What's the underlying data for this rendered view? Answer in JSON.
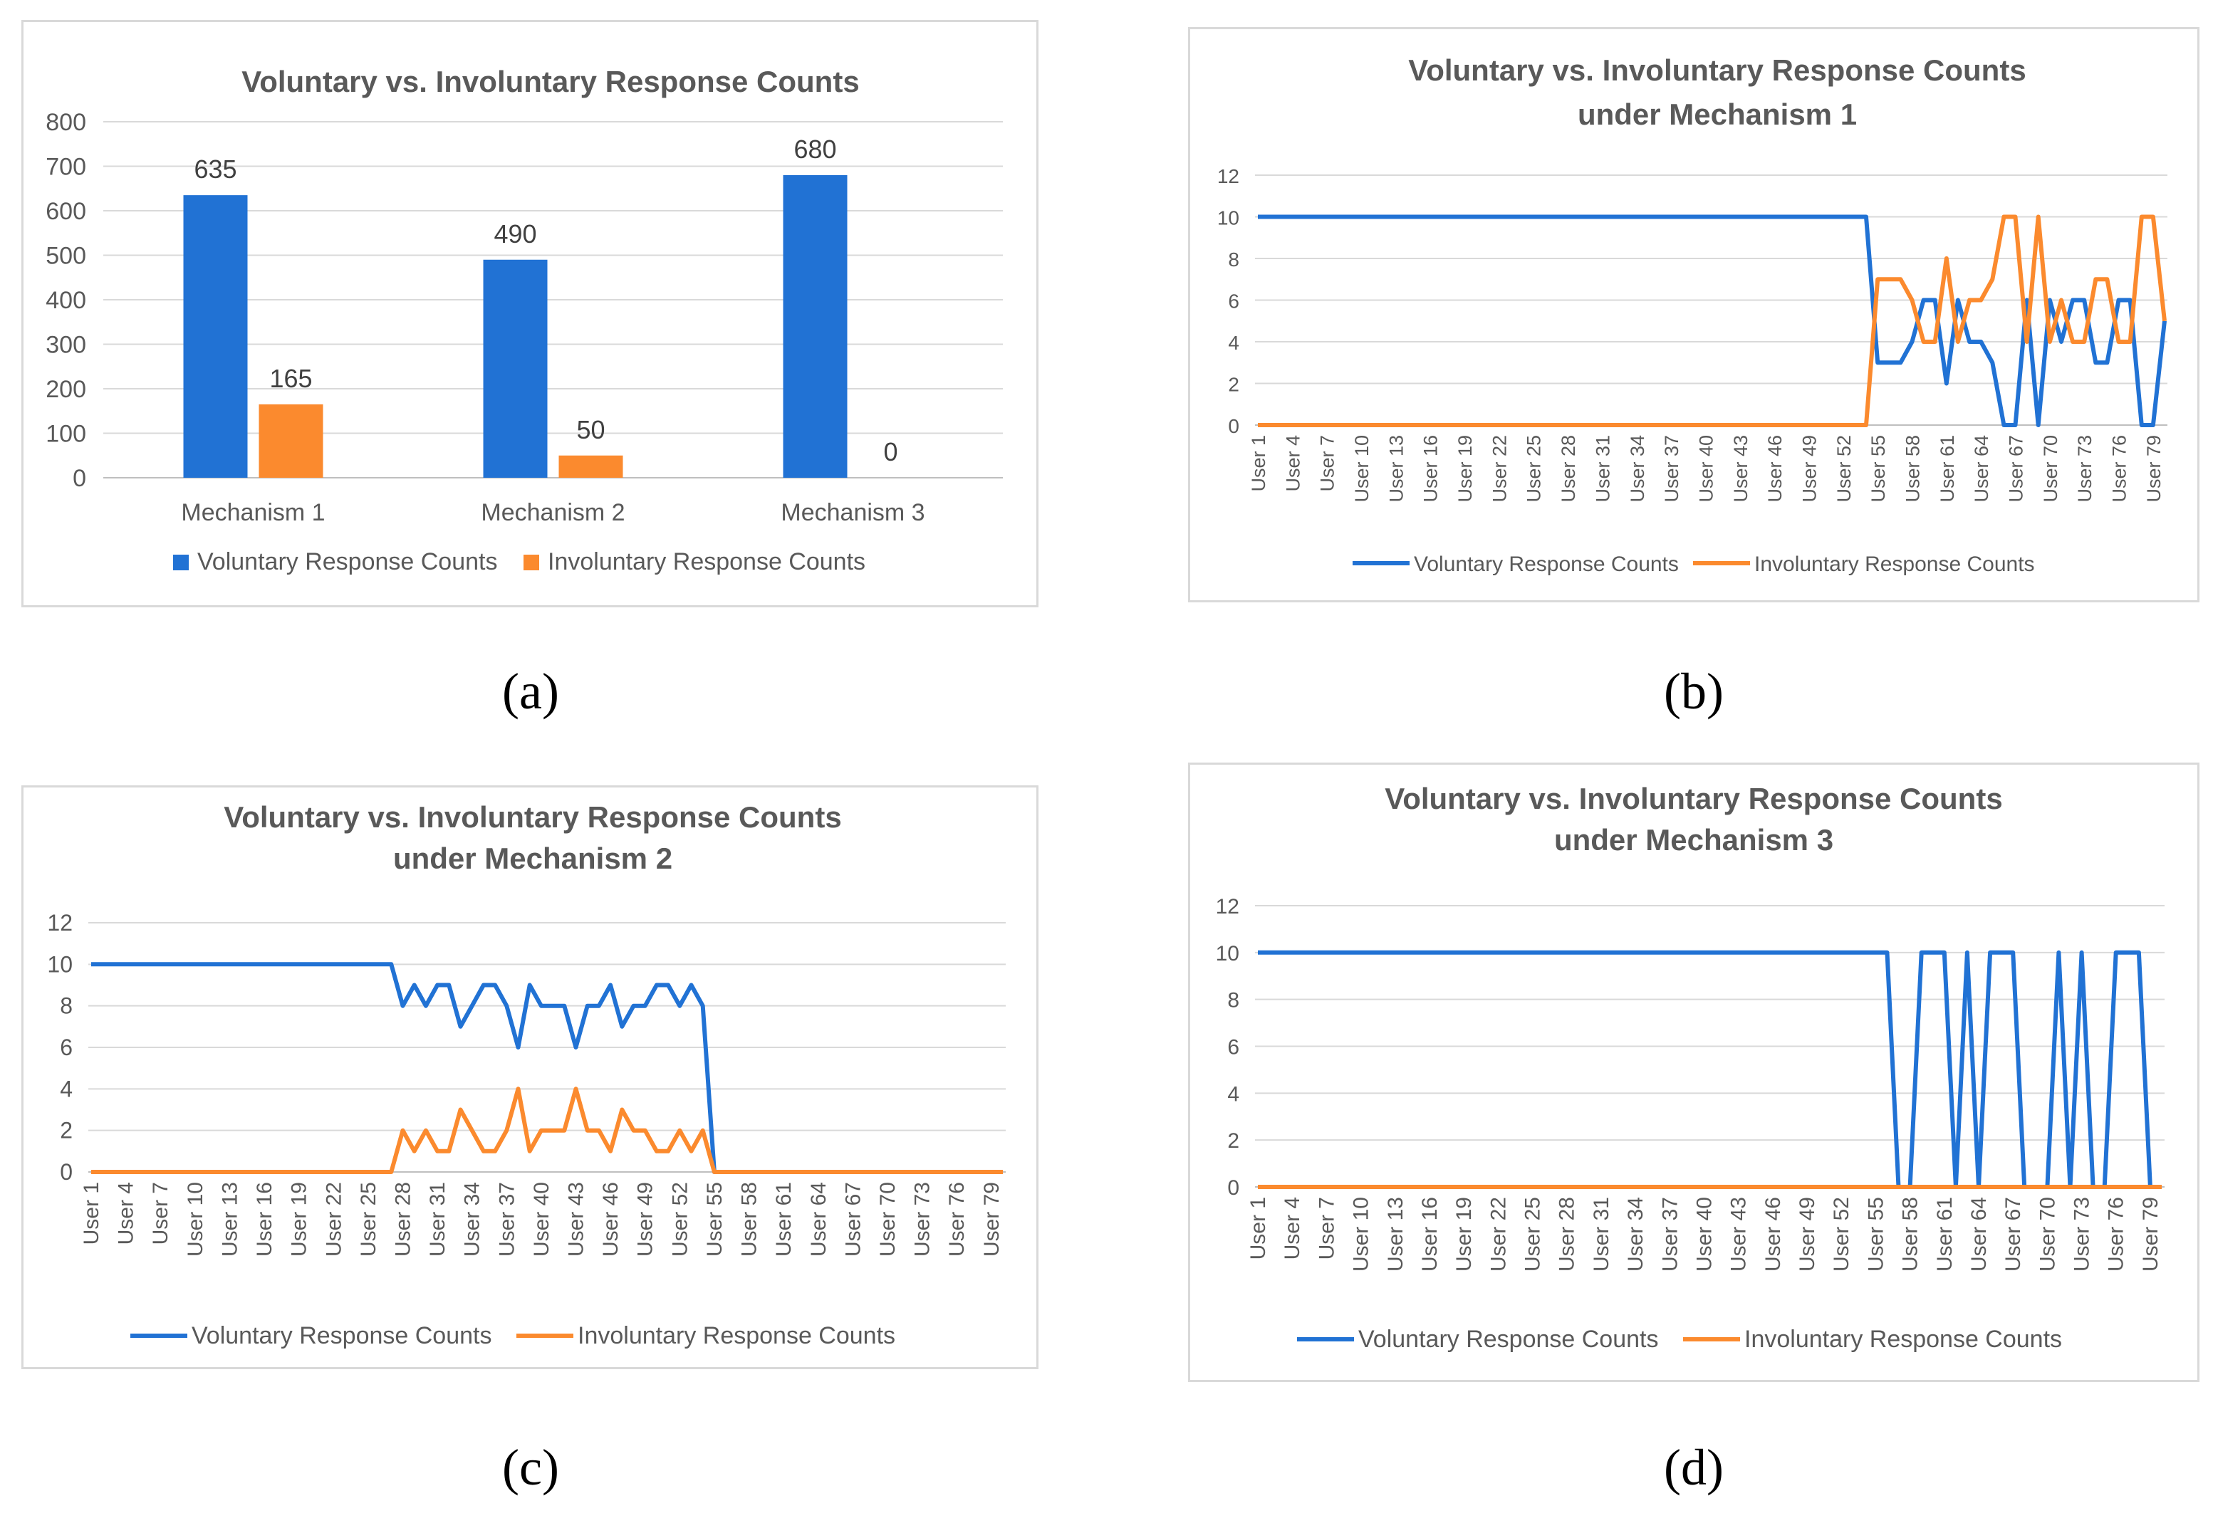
{
  "colors": {
    "voluntary": "#2172d4",
    "involuntary": "#fb8a2e",
    "grid": "#d9d9d9",
    "axis": "#bfbfbf",
    "text": "#595959"
  },
  "captions": {
    "a": "(a)",
    "b": "(b)",
    "c": "(c)",
    "d": "(d)"
  },
  "legend": {
    "voluntary": "Voluntary Response Counts",
    "involuntary": "Involuntary Response Counts"
  },
  "chart_data": [
    {
      "id": "a",
      "type": "bar",
      "title": "Voluntary vs. Involuntary Response Counts",
      "categories": [
        "Mechanism 1",
        "Mechanism 2",
        "Mechanism 3"
      ],
      "series": [
        {
          "name": "Voluntary Response Counts",
          "values": [
            635,
            490,
            680
          ]
        },
        {
          "name": "Involuntary Response Counts",
          "values": [
            165,
            50,
            0
          ]
        }
      ],
      "ylim": [
        0,
        800
      ],
      "yticks": [
        0,
        100,
        200,
        300,
        400,
        500,
        600,
        700,
        800
      ],
      "legend": "bottom",
      "grid": true
    },
    {
      "id": "b",
      "type": "line",
      "title": "Voluntary vs. Involuntary Response Counts under Mechanism 1",
      "x_tick_labels": [
        "User 1",
        "User 4",
        "User 7",
        "User 10",
        "User 13",
        "User 16",
        "User 19",
        "User 22",
        "User 25",
        "User 28",
        "User 31",
        "User 34",
        "User 37",
        "User 40",
        "User 43",
        "User 46",
        "User 49",
        "User 52",
        "User 55",
        "User 58",
        "User 61",
        "User 64",
        "User 67",
        "User 70",
        "User 73",
        "User 76",
        "User 79"
      ],
      "x_count": 80,
      "series": [
        {
          "name": "Voluntary Response Counts",
          "values": [
            10,
            10,
            10,
            10,
            10,
            10,
            10,
            10,
            10,
            10,
            10,
            10,
            10,
            10,
            10,
            10,
            10,
            10,
            10,
            10,
            10,
            10,
            10,
            10,
            10,
            10,
            10,
            10,
            10,
            10,
            10,
            10,
            10,
            10,
            10,
            10,
            10,
            10,
            10,
            10,
            10,
            10,
            10,
            10,
            10,
            10,
            10,
            10,
            10,
            10,
            10,
            10,
            10,
            10,
            3,
            3,
            3,
            4,
            6,
            6,
            2,
            6,
            4,
            4,
            3,
            0,
            0,
            6,
            0,
            6,
            4,
            6,
            6,
            3,
            3,
            6,
            6,
            0,
            0,
            5
          ]
        },
        {
          "name": "Involuntary Response Counts",
          "values": [
            0,
            0,
            0,
            0,
            0,
            0,
            0,
            0,
            0,
            0,
            0,
            0,
            0,
            0,
            0,
            0,
            0,
            0,
            0,
            0,
            0,
            0,
            0,
            0,
            0,
            0,
            0,
            0,
            0,
            0,
            0,
            0,
            0,
            0,
            0,
            0,
            0,
            0,
            0,
            0,
            0,
            0,
            0,
            0,
            0,
            0,
            0,
            0,
            0,
            0,
            0,
            0,
            0,
            0,
            7,
            7,
            7,
            6,
            4,
            4,
            8,
            4,
            6,
            6,
            7,
            10,
            10,
            4,
            10,
            4,
            6,
            4,
            4,
            7,
            7,
            4,
            4,
            10,
            10,
            5
          ]
        }
      ],
      "ylim": [
        0,
        12
      ],
      "yticks": [
        0,
        2,
        4,
        6,
        8,
        10,
        12
      ],
      "legend": "bottom",
      "grid": true
    },
    {
      "id": "c",
      "type": "line",
      "title": "Voluntary vs. Involuntary Response Counts under Mechanism 2",
      "x_tick_labels": [
        "User 1",
        "User 4",
        "User 7",
        "User 10",
        "User 13",
        "User 16",
        "User 19",
        "User 22",
        "User 25",
        "User 28",
        "User 31",
        "User 34",
        "User 37",
        "User 40",
        "User 43",
        "User 46",
        "User 49",
        "User 52",
        "User 55",
        "User 58",
        "User 61",
        "User 64",
        "User 67",
        "User 70",
        "User 73",
        "User 76",
        "User 79"
      ],
      "x_count": 80,
      "series": [
        {
          "name": "Voluntary Response Counts",
          "values": [
            10,
            10,
            10,
            10,
            10,
            10,
            10,
            10,
            10,
            10,
            10,
            10,
            10,
            10,
            10,
            10,
            10,
            10,
            10,
            10,
            10,
            10,
            10,
            10,
            10,
            10,
            10,
            8,
            9,
            8,
            9,
            9,
            7,
            8,
            9,
            9,
            8,
            6,
            9,
            8,
            8,
            8,
            6,
            8,
            8,
            9,
            7,
            8,
            8,
            9,
            9,
            8,
            9,
            8,
            0,
            0,
            0,
            0,
            0,
            0,
            0,
            0,
            0,
            0,
            0,
            0,
            0,
            0,
            0,
            0,
            0,
            0,
            0,
            0,
            0,
            0,
            0,
            0,
            0,
            0
          ]
        },
        {
          "name": "Involuntary Response Counts",
          "values": [
            0,
            0,
            0,
            0,
            0,
            0,
            0,
            0,
            0,
            0,
            0,
            0,
            0,
            0,
            0,
            0,
            0,
            0,
            0,
            0,
            0,
            0,
            0,
            0,
            0,
            0,
            0,
            2,
            1,
            2,
            1,
            1,
            3,
            2,
            1,
            1,
            2,
            4,
            1,
            2,
            2,
            2,
            4,
            2,
            2,
            1,
            3,
            2,
            2,
            1,
            1,
            2,
            1,
            2,
            0,
            0,
            0,
            0,
            0,
            0,
            0,
            0,
            0,
            0,
            0,
            0,
            0,
            0,
            0,
            0,
            0,
            0,
            0,
            0,
            0,
            0,
            0,
            0,
            0,
            0
          ]
        }
      ],
      "ylim": [
        0,
        12
      ],
      "yticks": [
        0,
        2,
        4,
        6,
        8,
        10,
        12
      ],
      "legend": "bottom",
      "grid": true
    },
    {
      "id": "d",
      "type": "line",
      "title": "Voluntary vs. Involuntary Response Counts under Mechanism 3",
      "x_tick_labels": [
        "User 1",
        "User 4",
        "User 7",
        "User 10",
        "User 13",
        "User 16",
        "User 19",
        "User 22",
        "User 25",
        "User 28",
        "User 31",
        "User 34",
        "User 37",
        "User 40",
        "User 43",
        "User 46",
        "User 49",
        "User 52",
        "User 55",
        "User 58",
        "User 61",
        "User 64",
        "User 67",
        "User 70",
        "User 73",
        "User 76",
        "User 79"
      ],
      "x_count": 80,
      "series": [
        {
          "name": "Voluntary Response Counts",
          "values": [
            10,
            10,
            10,
            10,
            10,
            10,
            10,
            10,
            10,
            10,
            10,
            10,
            10,
            10,
            10,
            10,
            10,
            10,
            10,
            10,
            10,
            10,
            10,
            10,
            10,
            10,
            10,
            10,
            10,
            10,
            10,
            10,
            10,
            10,
            10,
            10,
            10,
            10,
            10,
            10,
            10,
            10,
            10,
            10,
            10,
            10,
            10,
            10,
            10,
            10,
            10,
            10,
            10,
            10,
            10,
            10,
            0,
            0,
            10,
            10,
            10,
            0,
            10,
            0,
            10,
            10,
            10,
            0,
            0,
            0,
            10,
            0,
            10,
            0,
            0,
            10,
            10,
            10,
            0,
            0
          ]
        },
        {
          "name": "Involuntary Response Counts",
          "values": [
            0,
            0,
            0,
            0,
            0,
            0,
            0,
            0,
            0,
            0,
            0,
            0,
            0,
            0,
            0,
            0,
            0,
            0,
            0,
            0,
            0,
            0,
            0,
            0,
            0,
            0,
            0,
            0,
            0,
            0,
            0,
            0,
            0,
            0,
            0,
            0,
            0,
            0,
            0,
            0,
            0,
            0,
            0,
            0,
            0,
            0,
            0,
            0,
            0,
            0,
            0,
            0,
            0,
            0,
            0,
            0,
            0,
            0,
            0,
            0,
            0,
            0,
            0,
            0,
            0,
            0,
            0,
            0,
            0,
            0,
            0,
            0,
            0,
            0,
            0,
            0,
            0,
            0,
            0,
            0
          ]
        }
      ],
      "ylim": [
        0,
        12
      ],
      "yticks": [
        0,
        2,
        4,
        6,
        8,
        10,
        12
      ],
      "legend": "bottom",
      "grid": true
    }
  ]
}
